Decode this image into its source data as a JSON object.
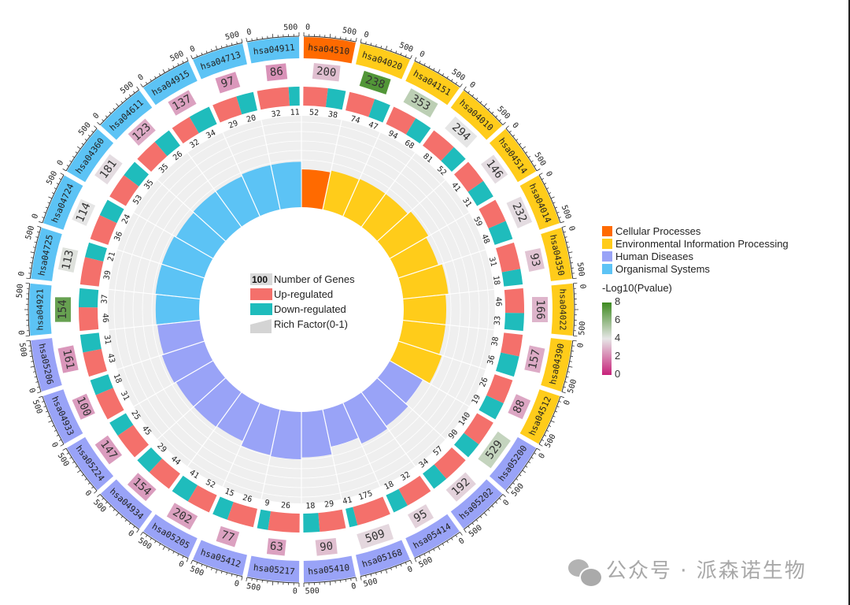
{
  "chart_data": {
    "type": "circos",
    "title": "",
    "outer_axis": {
      "min": 0,
      "max": 500,
      "tick_labels": [
        "500",
        "0"
      ]
    },
    "sectors": [
      {
        "id": "hsa04510",
        "category": "Cellular Processes",
        "genes": 200,
        "up": 52,
        "down": 38,
        "neglog10p": 3.2,
        "rich_factor": 0.4
      },
      {
        "id": "hsa04020",
        "category": "Environmental Information Processing",
        "genes": 238,
        "up": 74,
        "down": 47,
        "neglog10p": 7.5,
        "rich_factor": 0.42
      },
      {
        "id": "hsa04151",
        "category": "Environmental Information Processing",
        "genes": 353,
        "up": 94,
        "down": 68,
        "neglog10p": 5.0,
        "rich_factor": 0.43
      },
      {
        "id": "hsa04010",
        "category": "Environmental Information Processing",
        "genes": 294,
        "up": 81,
        "down": 52,
        "neglog10p": 4.0,
        "rich_factor": 0.43
      },
      {
        "id": "hsa04514",
        "category": "Environmental Information Processing",
        "genes": 146,
        "up": 41,
        "down": 31,
        "neglog10p": 3.8,
        "rich_factor": 0.47
      },
      {
        "id": "hsa04014",
        "category": "Environmental Information Processing",
        "genes": 232,
        "up": 59,
        "down": 48,
        "neglog10p": 3.8,
        "rich_factor": 0.44
      },
      {
        "id": "hsa04350",
        "category": "Environmental Information Processing",
        "genes": 93,
        "up": 31,
        "down": 18,
        "neglog10p": 3.3,
        "rich_factor": 0.48
      },
      {
        "id": "hsa04022",
        "category": "Environmental Information Processing",
        "genes": 166,
        "up": 46,
        "down": 33,
        "neglog10p": 3.0,
        "rich_factor": 0.45
      },
      {
        "id": "hsa04390",
        "category": "Environmental Information Processing",
        "genes": 157,
        "up": 38,
        "down": 36,
        "neglog10p": 2.8,
        "rich_factor": 0.45
      },
      {
        "id": "hsa04512",
        "category": "Environmental Information Processing",
        "genes": 88,
        "up": 26,
        "down": 19,
        "neglog10p": 2.7,
        "rich_factor": 0.48
      },
      {
        "id": "hsa05200",
        "category": "Human Diseases",
        "genes": 529,
        "up": 140,
        "down": 90,
        "neglog10p": 4.8,
        "rich_factor": 0.4
      },
      {
        "id": "hsa05202",
        "category": "Human Diseases",
        "genes": 192,
        "up": 57,
        "down": 34,
        "neglog10p": 3.6,
        "rich_factor": 0.44
      },
      {
        "id": "hsa05414",
        "category": "Human Diseases",
        "genes": 95,
        "up": 32,
        "down": 18,
        "neglog10p": 3.6,
        "rich_factor": 0.47
      },
      {
        "id": "hsa05168",
        "category": "Human Diseases",
        "genes": 509,
        "up": 175,
        "down": 41,
        "neglog10p": 3.7,
        "rich_factor": 0.4
      },
      {
        "id": "hsa05410",
        "category": "Human Diseases",
        "genes": 90,
        "up": 29,
        "down": 18,
        "neglog10p": 3.2,
        "rich_factor": 0.48
      },
      {
        "id": "hsa05217",
        "category": "Human Diseases",
        "genes": 63,
        "up": 26,
        "down": 9,
        "neglog10p": 2.6,
        "rich_factor": 0.5
      },
      {
        "id": "hsa05412",
        "category": "Human Diseases",
        "genes": 77,
        "up": 26,
        "down": 15,
        "neglog10p": 2.6,
        "rich_factor": 0.49
      },
      {
        "id": "hsa05205",
        "category": "Human Diseases",
        "genes": 202,
        "up": 52,
        "down": 41,
        "neglog10p": 2.6,
        "rich_factor": 0.44
      },
      {
        "id": "hsa04934",
        "category": "Human Diseases",
        "genes": 154,
        "up": 44,
        "down": 29,
        "neglog10p": 2.5,
        "rich_factor": 0.45
      },
      {
        "id": "hsa05224",
        "category": "Human Diseases",
        "genes": 147,
        "up": 45,
        "down": 25,
        "neglog10p": 2.5,
        "rich_factor": 0.45
      },
      {
        "id": "hsa04933",
        "category": "Human Diseases",
        "genes": 100,
        "up": 31,
        "down": 18,
        "neglog10p": 2.5,
        "rich_factor": 0.47
      },
      {
        "id": "hsa05206",
        "category": "Human Diseases",
        "genes": 161,
        "up": 43,
        "down": 31,
        "neglog10p": 2.4,
        "rich_factor": 0.45
      },
      {
        "id": "hsa04921",
        "category": "Organismal Systems",
        "genes": 154,
        "up": 46,
        "down": 37,
        "neglog10p": 7.0,
        "rich_factor": 0.46
      },
      {
        "id": "hsa04725",
        "category": "Organismal Systems",
        "genes": 113,
        "up": 39,
        "down": 21,
        "neglog10p": 4.2,
        "rich_factor": 0.47
      },
      {
        "id": "hsa04724",
        "category": "Organismal Systems",
        "genes": 114,
        "up": 36,
        "down": 24,
        "neglog10p": 4.0,
        "rich_factor": 0.47
      },
      {
        "id": "hsa04360",
        "category": "Organismal Systems",
        "genes": 181,
        "up": 53,
        "down": 35,
        "neglog10p": 3.8,
        "rich_factor": 0.45
      },
      {
        "id": "hsa04611",
        "category": "Organismal Systems",
        "genes": 123,
        "up": 35,
        "down": 26,
        "neglog10p": 2.8,
        "rich_factor": 0.46
      },
      {
        "id": "hsa04915",
        "category": "Organismal Systems",
        "genes": 137,
        "up": 32,
        "down": 34,
        "neglog10p": 2.6,
        "rich_factor": 0.46
      },
      {
        "id": "hsa04713",
        "category": "Organismal Systems",
        "genes": 97,
        "up": 29,
        "down": 20,
        "neglog10p": 2.4,
        "rich_factor": 0.48
      },
      {
        "id": "hsa04911",
        "category": "Organismal Systems",
        "genes": 86,
        "up": 32,
        "down": 11,
        "neglog10p": 2.3,
        "rich_factor": 0.48
      }
    ],
    "category_colors": {
      "Cellular Processes": "#ff6a00",
      "Environmental Information Processing": "#ffcc1a",
      "Human Diseases": "#99a3f7",
      "Organismal Systems": "#5cc3f5"
    },
    "regulation_colors": {
      "up": "#f4706b",
      "down": "#1fbcbc"
    },
    "pvalue_scale": {
      "title": "-Log10(Pvalue)",
      "ticks": [
        0,
        2,
        4,
        6,
        8
      ],
      "low": "#c7217a",
      "mid": "#e6e6e6",
      "high": "#3d8a1f"
    },
    "legend": {
      "position": "right",
      "categories": [
        "Cellular Processes",
        "Environmental Information Processing",
        "Human Diseases",
        "Organismal Systems"
      ]
    },
    "center_legend": {
      "genes_sample": "100",
      "genes_label": "Number of Genes",
      "up_label": "Up-regulated",
      "down_label": "Down-regulated",
      "rich_label": "Rich Factor(0-1)"
    }
  },
  "watermark": {
    "text": "公众号 · 派森诺生物"
  }
}
